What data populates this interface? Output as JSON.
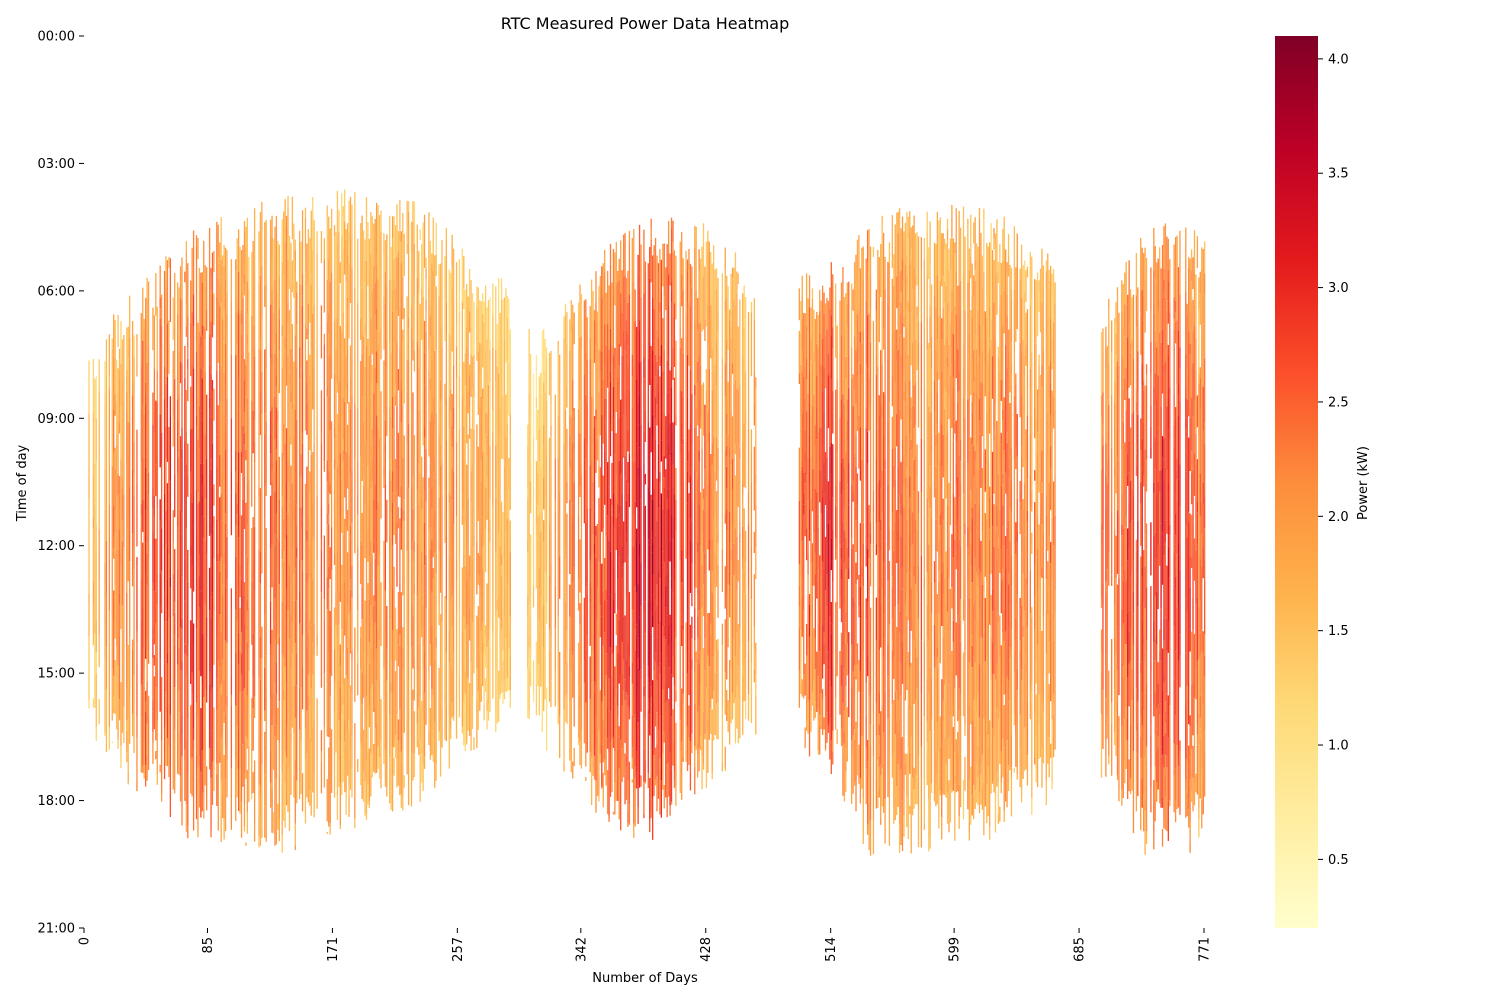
{
  "chart_data": {
    "type": "heatmap",
    "title": "RTC Measured Power Data Heatmap",
    "xlabel": "Number of Days",
    "ylabel": "Time of day",
    "x_range": [
      0,
      771
    ],
    "x_ticks": [
      0,
      85,
      171,
      257,
      342,
      428,
      514,
      599,
      685,
      771
    ],
    "y_ticks": [
      "00:00",
      "03:00",
      "06:00",
      "09:00",
      "12:00",
      "15:00",
      "18:00",
      "21:00"
    ],
    "y_range_hours": [
      0,
      21
    ],
    "grid": false,
    "colorbar": {
      "label": "Power (kW)",
      "colormap": "YlOrRd",
      "range": [
        0.2,
        4.1
      ],
      "ticks": [
        0.5,
        1.0,
        1.5,
        2.0,
        2.5,
        3.0,
        3.5,
        4.0
      ],
      "tick_labels": [
        "0.5",
        "1.0",
        "1.5",
        "2.0",
        "2.5",
        "3.0",
        "3.5",
        "4.0"
      ]
    },
    "colormap_stops": [
      "#ffffcc",
      "#ffeda0",
      "#fed976",
      "#feb24c",
      "#fd8d3c",
      "#fc4e2a",
      "#e31a1c",
      "#bd0026",
      "#800026"
    ],
    "active_periods_days": [
      [
        3,
        293
      ],
      [
        305,
        462
      ],
      [
        492,
        668
      ],
      [
        700,
        771
      ]
    ],
    "power_profile_keyframes": {
      "days": [
        0,
        40,
        80,
        130,
        180,
        230,
        290,
        310,
        360,
        390,
        430,
        470,
        510,
        540,
        570,
        620,
        660,
        700,
        730,
        760,
        771
      ],
      "sunrise_hour": [
        8.0,
        6.3,
        5.0,
        4.4,
        4.2,
        4.5,
        6.4,
        7.7,
        5.5,
        4.8,
        5.0,
        6.5,
        6.0,
        5.0,
        4.4,
        4.6,
        5.3,
        7.0,
        5.0,
        5.0,
        5.2
      ],
      "sunset_hour": [
        15.5,
        17.5,
        18.4,
        18.7,
        18.1,
        17.4,
        15.5,
        15.8,
        18.0,
        18.3,
        17.0,
        15.6,
        16.6,
        18.6,
        18.6,
        18.3,
        17.5,
        16.8,
        18.7,
        18.6,
        18.0
      ],
      "typical_power_kw": [
        1.3,
        2.8,
        2.9,
        2.4,
        2.2,
        2.2,
        1.8,
        1.6,
        2.9,
        3.4,
        2.4,
        2.0,
        2.9,
        2.7,
        2.3,
        2.3,
        2.2,
        2.5,
        3.0,
        2.8,
        2.4
      ]
    }
  }
}
